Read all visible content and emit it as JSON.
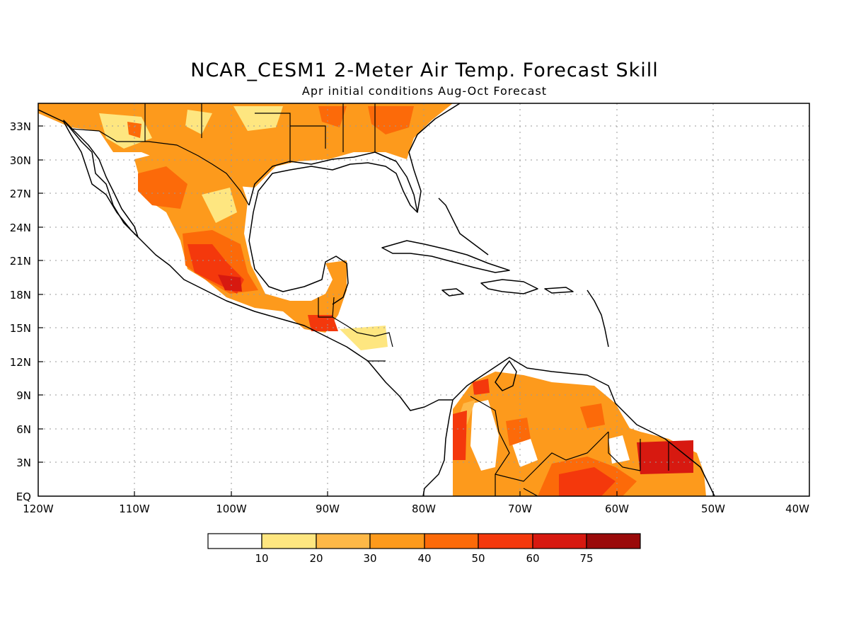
{
  "title": "NCAR_CESM1 2-Meter Air Temp. Forecast Skill",
  "subtitle": "Apr initial conditions  Aug-Oct Forecast",
  "map": {
    "lon_range": [
      -120,
      -40
    ],
    "lat_range": [
      0,
      35
    ],
    "lat_ticks": [
      {
        "value": 33,
        "label": "33N"
      },
      {
        "value": 30,
        "label": "30N"
      },
      {
        "value": 27,
        "label": "27N"
      },
      {
        "value": 24,
        "label": "24N"
      },
      {
        "value": 21,
        "label": "21N"
      },
      {
        "value": 18,
        "label": "18N"
      },
      {
        "value": 15,
        "label": "15N"
      },
      {
        "value": 12,
        "label": "12N"
      },
      {
        "value": 9,
        "label": "9N"
      },
      {
        "value": 6,
        "label": "6N"
      },
      {
        "value": 3,
        "label": "3N"
      },
      {
        "value": 0,
        "label": "EQ"
      }
    ],
    "lon_ticks": [
      {
        "value": -120,
        "label": "120W"
      },
      {
        "value": -110,
        "label": "110W"
      },
      {
        "value": -100,
        "label": "100W"
      },
      {
        "value": -90,
        "label": "90W"
      },
      {
        "value": -80,
        "label": "80W"
      },
      {
        "value": -70,
        "label": "70W"
      },
      {
        "value": -60,
        "label": "60W"
      },
      {
        "value": -50,
        "label": "50W"
      },
      {
        "value": -40,
        "label": "40W"
      }
    ],
    "gridlines": true
  },
  "colorbar": {
    "colors": [
      "#ffffff",
      "#fee680",
      "#feb847",
      "#fd9a1c",
      "#fc6a09",
      "#f4380c",
      "#d71910",
      "#9a0a0a"
    ],
    "labels": [
      "10",
      "20",
      "30",
      "40",
      "50",
      "60",
      "75"
    ]
  }
}
